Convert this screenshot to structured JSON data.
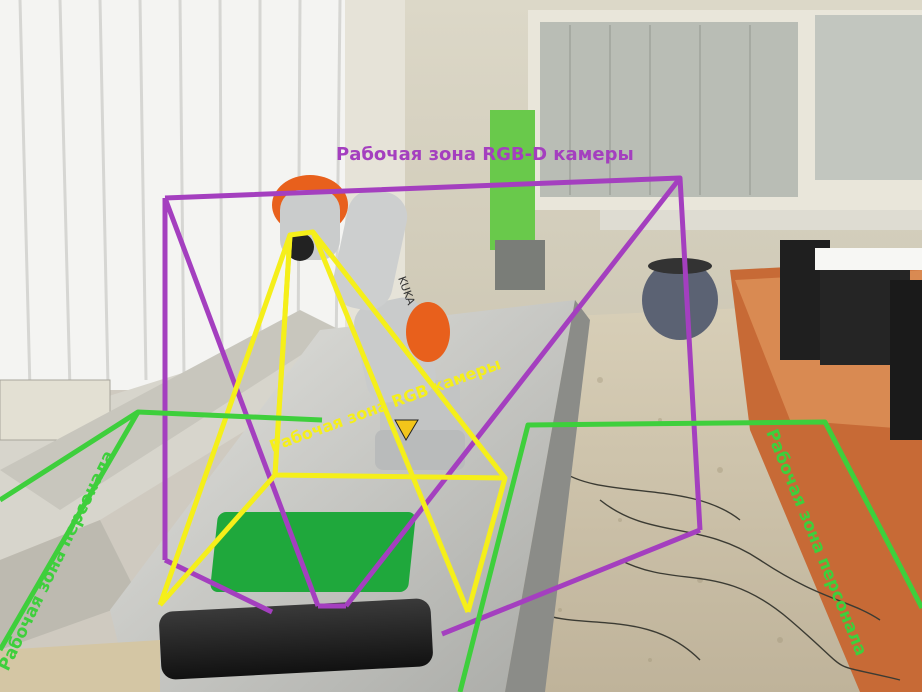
{
  "annotations": {
    "rgbd_zone_label": "Рабочая зона RGB-D камеры",
    "rgb_zone_label": "Рабочая зона RGB камеры",
    "personnel_zone_left_label": "Рабочая зона персонала",
    "personnel_zone_right_label": "Рабочая зона персонала",
    "robot_brand_text": "KUKA"
  },
  "colors": {
    "rgbd_zone": "#a43fbf",
    "rgb_zone": "#f5ef1a",
    "personnel_zone": "#3ecf3c",
    "robot_orange": "#e8601c",
    "target_mat": "#1fa83c"
  }
}
